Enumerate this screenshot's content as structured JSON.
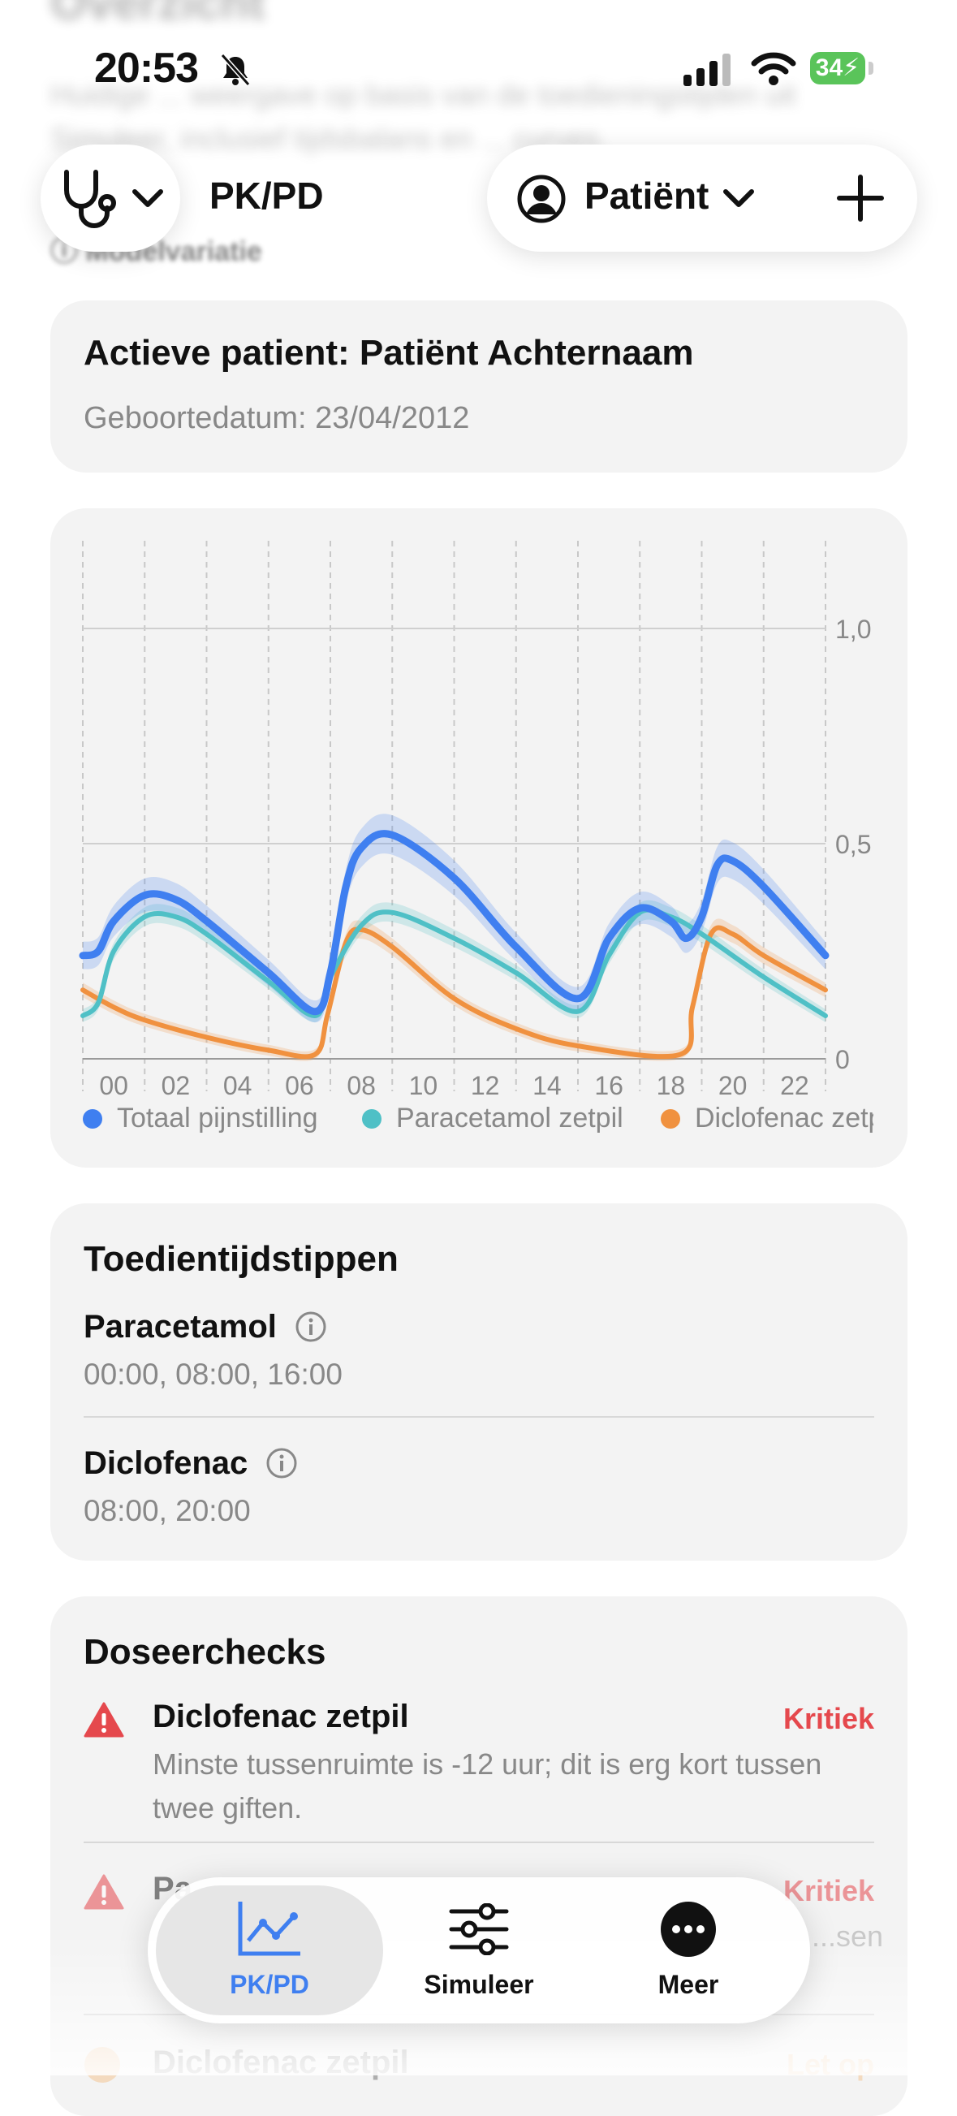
{
  "background": {
    "title": "Overzicht",
    "description": "Huidige ... weergave op basis van de toedieningstijden uit Simuleer, inclusief tijdsbalans en ... curves.",
    "model_variation": "Modelvariatie"
  },
  "status_bar": {
    "time": "20:53",
    "battery": "34"
  },
  "nav": {
    "title": "PK/PD",
    "patient_button": "Patiënt",
    "left_icon": "stethoscope-icon",
    "right_icon": "plus-icon"
  },
  "patient_card": {
    "name": "Actieve patient: Patiënt Achternaam",
    "dob": "Geboortedatum: 23/04/2012"
  },
  "chart_data": {
    "type": "line",
    "x_ticks": [
      "00",
      "02",
      "04",
      "06",
      "08",
      "10",
      "12",
      "14",
      "16",
      "18",
      "20",
      "22"
    ],
    "y_ticks": [
      "0",
      "0,5",
      "1,0"
    ],
    "ylim": [
      0,
      1.0
    ],
    "xlim": [
      0,
      24
    ],
    "legend_position": "bottom",
    "grid": true,
    "series": [
      {
        "name": "Totaal pijnstilling",
        "color": "#3f7ff0",
        "x": [
          0,
          0.5,
          1,
          2,
          3,
          4,
          6,
          7.5,
          8,
          8.5,
          9,
          10,
          12,
          14,
          16,
          17,
          18,
          19,
          19.5,
          20,
          20.5,
          21,
          22,
          24
        ],
        "y": [
          0.24,
          0.25,
          0.32,
          0.38,
          0.37,
          0.32,
          0.2,
          0.11,
          0.2,
          0.4,
          0.49,
          0.52,
          0.42,
          0.26,
          0.14,
          0.28,
          0.35,
          0.32,
          0.28,
          0.33,
          0.45,
          0.46,
          0.4,
          0.24
        ],
        "band": 0.05
      },
      {
        "name": "Paracetamol zetpil",
        "color": "#4fc0c6",
        "x": [
          0,
          0.5,
          1,
          2,
          3,
          4,
          6,
          7.5,
          8,
          9,
          10,
          12,
          14,
          16,
          17,
          18,
          19,
          20,
          22,
          24
        ],
        "y": [
          0.1,
          0.13,
          0.25,
          0.33,
          0.33,
          0.29,
          0.18,
          0.1,
          0.19,
          0.31,
          0.34,
          0.28,
          0.2,
          0.11,
          0.24,
          0.34,
          0.33,
          0.29,
          0.19,
          0.1
        ],
        "band": 0.03
      },
      {
        "name": "Diclofenac zetpil",
        "color": "#f0913f",
        "x": [
          0,
          1,
          2,
          4,
          6,
          7.5,
          7.9,
          8.5,
          9,
          10,
          12,
          14,
          16,
          19.3,
          19.7,
          20.3,
          21,
          22,
          24
        ],
        "y": [
          0.16,
          0.12,
          0.09,
          0.05,
          0.02,
          0.01,
          0.1,
          0.27,
          0.3,
          0.26,
          0.14,
          0.07,
          0.03,
          0.01,
          0.12,
          0.29,
          0.29,
          0.24,
          0.16
        ],
        "band": 0.03
      }
    ]
  },
  "times_card": {
    "title": "Toedientijdstippen",
    "items": [
      {
        "name": "Paracetamol",
        "times": "00:00, 08:00, 16:00"
      },
      {
        "name": "Diclofenac",
        "times": "08:00, 20:00"
      }
    ]
  },
  "checks_card": {
    "title": "Doseerchecks",
    "items": [
      {
        "name": "Diclofenac zetpil",
        "status": "Kritiek",
        "message": "Minste tussenruimte is -12 uur; dit is erg kort tussen twee giften."
      },
      {
        "name": "Pa...",
        "status": "Kritiek",
        "message": "...sen"
      },
      {
        "name": "Diclofenac zetpil",
        "status": "Let op"
      }
    ]
  },
  "tabbar": {
    "tabs": [
      {
        "label": "PK/PD",
        "icon": "chart-line-icon",
        "active": true
      },
      {
        "label": "Simuleer",
        "icon": "sliders-icon",
        "active": false
      },
      {
        "label": "Meer",
        "icon": "more-icon",
        "active": false
      }
    ]
  },
  "colors": {
    "accent": "#3f7ff0",
    "critical": "#e5484d",
    "warning": "#f3a24a"
  }
}
